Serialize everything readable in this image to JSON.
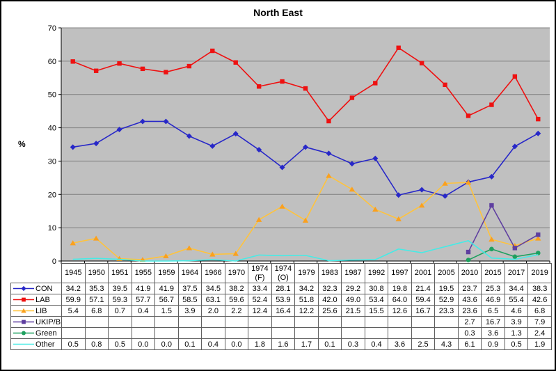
{
  "chart_data": {
    "type": "line",
    "title": "North East",
    "ylabel": "%",
    "ylim": [
      0,
      70
    ],
    "ytick_step": 10,
    "grid": true,
    "legend_position": "table-left-column",
    "plot_bg_color": "#c0c0c0",
    "grid_color": "#7f7f7f",
    "axis_color": "#000000",
    "categories": [
      "1945",
      "1950",
      "1951",
      "1955",
      "1959",
      "1964",
      "1966",
      "1970",
      "1974 (F)",
      "1974 (O)",
      "1979",
      "1983",
      "1987",
      "1992",
      "1997",
      "2001",
      "2005",
      "2010",
      "2015",
      "2017",
      "2019"
    ],
    "series": [
      {
        "name": "CON",
        "color": "#2828c8",
        "marker": "diamond",
        "values": [
          34.2,
          35.3,
          39.5,
          41.9,
          41.9,
          37.5,
          34.5,
          38.2,
          33.4,
          28.1,
          34.2,
          32.3,
          29.2,
          30.8,
          19.8,
          21.4,
          19.5,
          23.7,
          25.3,
          34.4,
          38.3
        ]
      },
      {
        "name": "LAB",
        "color": "#ee1111",
        "marker": "square",
        "values": [
          59.9,
          57.1,
          59.3,
          57.7,
          56.7,
          58.5,
          63.1,
          59.6,
          52.4,
          53.9,
          51.8,
          42.0,
          49.0,
          53.4,
          64.0,
          59.4,
          52.9,
          43.6,
          46.9,
          55.4,
          42.6
        ]
      },
      {
        "name": "LIB",
        "color": "#ffc33c",
        "marker_color": "#faa01e",
        "marker": "triangle",
        "values": [
          5.4,
          6.8,
          0.7,
          0.4,
          1.5,
          3.9,
          2.0,
          2.2,
          12.4,
          16.4,
          12.2,
          25.6,
          21.5,
          15.5,
          12.6,
          16.7,
          23.3,
          23.6,
          6.5,
          4.6,
          6.8
        ]
      },
      {
        "name": "UKIP/Br",
        "color": "#5f3fa0",
        "marker": "square",
        "values": [
          null,
          null,
          null,
          null,
          null,
          null,
          null,
          null,
          null,
          null,
          null,
          null,
          null,
          null,
          null,
          null,
          null,
          2.7,
          16.7,
          3.9,
          7.9
        ]
      },
      {
        "name": "Green",
        "color": "#1ea05f",
        "marker": "circle",
        "values": [
          null,
          null,
          null,
          null,
          null,
          null,
          null,
          null,
          null,
          null,
          null,
          null,
          null,
          null,
          null,
          null,
          null,
          0.3,
          3.6,
          1.3,
          2.4
        ]
      },
      {
        "name": "Other",
        "color": "#46ebe6",
        "marker": "none",
        "values": [
          0.5,
          0.8,
          0.5,
          0.0,
          0.0,
          0.1,
          0.4,
          0.0,
          1.8,
          1.6,
          1.7,
          0.1,
          0.3,
          0.4,
          3.6,
          2.5,
          4.3,
          6.1,
          0.9,
          0.5,
          1.9
        ]
      }
    ]
  }
}
